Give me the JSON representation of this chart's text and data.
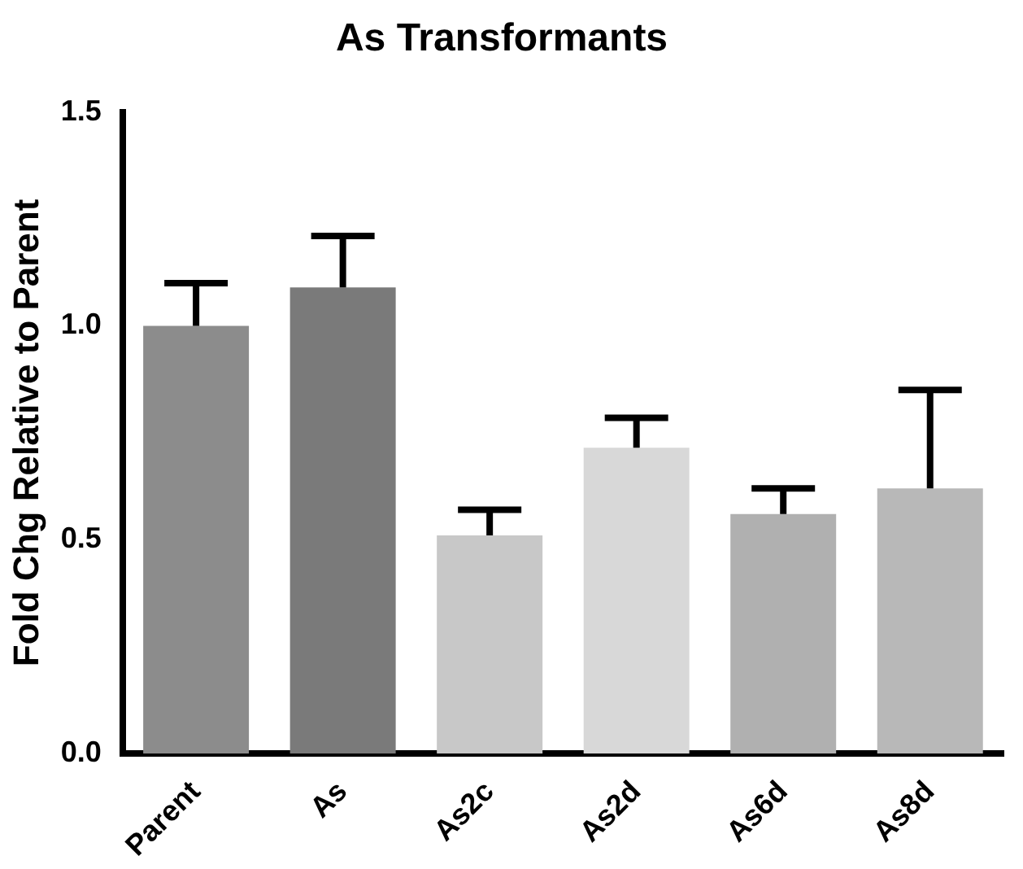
{
  "chart_data": {
    "type": "bar",
    "title": "As Transformants",
    "ylabel": "Fold Chg Relative to Parent",
    "categories": [
      "Parent",
      "As",
      "As2c",
      "As2d",
      "As6d",
      "As8d"
    ],
    "values": [
      1.0,
      1.09,
      0.51,
      0.715,
      0.56,
      0.62
    ],
    "colors": [
      "#8c8c8c",
      "#7a7a7a",
      "#c8c8c8",
      "#d8d8d8",
      "#b0b0b0",
      "#b8b8b8"
    ],
    "errors": [
      [
        1.0,
        1.1
      ],
      [
        1.09,
        1.21
      ],
      [
        0.51,
        0.57
      ],
      [
        0.715,
        0.785
      ],
      [
        0.56,
        0.62
      ],
      [
        0.62,
        0.85
      ]
    ],
    "ylim": [
      0,
      1.5
    ],
    "yticks": [
      {
        "value": 0,
        "label": "0.0"
      },
      {
        "value": 0.5,
        "label": "0.5"
      },
      {
        "value": 1,
        "label": "1.0"
      },
      {
        "value": 1.5,
        "label": "1.5"
      }
    ],
    "grid": false,
    "legend": false
  }
}
